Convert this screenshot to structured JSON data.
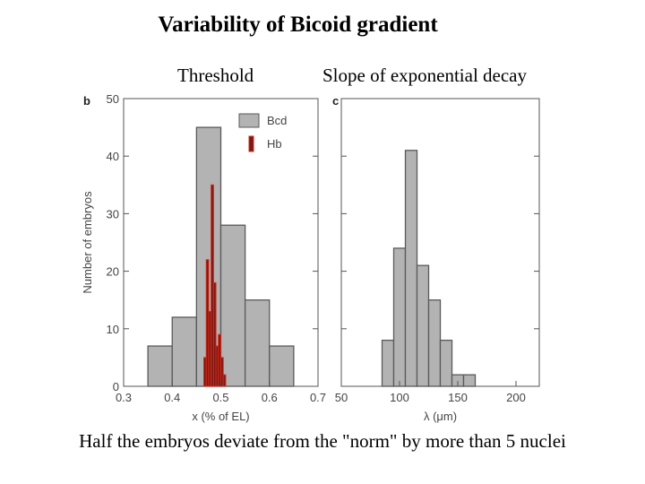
{
  "slide": {
    "title": "Variability of Bicoid gradient",
    "left_label": "Threshold",
    "right_label": "Slope of exponential decay",
    "caption": "Half the embryos deviate from the \"norm\" by more than 5 nuclei"
  },
  "colors": {
    "bcd_fill": "#b3b3b3",
    "hb_fill": "#7a1a14",
    "hb_edge": "#d02a1a",
    "axis": "#555555"
  },
  "chart_data": [
    {
      "type": "bar",
      "panel_letter": "b",
      "xlabel": "x (% of EL)",
      "ylabel": "Number of embryos",
      "xlim": [
        0.3,
        0.7
      ],
      "ylim": [
        0,
        50
      ],
      "xticks": [
        "0.3",
        "0.4",
        "0.5",
        "0.6",
        "0.7"
      ],
      "yticks": [
        "0",
        "10",
        "20",
        "30",
        "40",
        "50"
      ],
      "legend": {
        "position": "top-right",
        "entries": [
          "Bcd",
          "Hb"
        ]
      },
      "series": [
        {
          "name": "Bcd",
          "bins": [
            {
              "x0": 0.35,
              "x1": 0.4,
              "value": 7
            },
            {
              "x0": 0.4,
              "x1": 0.45,
              "value": 12
            },
            {
              "x0": 0.45,
              "x1": 0.5,
              "value": 45
            },
            {
              "x0": 0.5,
              "x1": 0.55,
              "value": 28
            },
            {
              "x0": 0.55,
              "x1": 0.6,
              "value": 15
            },
            {
              "x0": 0.6,
              "x1": 0.65,
              "value": 7
            }
          ]
        },
        {
          "name": "Hb",
          "bins": [
            {
              "x0": 0.465,
              "x1": 0.47,
              "value": 5
            },
            {
              "x0": 0.47,
              "x1": 0.475,
              "value": 22
            },
            {
              "x0": 0.475,
              "x1": 0.48,
              "value": 13
            },
            {
              "x0": 0.48,
              "x1": 0.485,
              "value": 35
            },
            {
              "x0": 0.485,
              "x1": 0.49,
              "value": 18
            },
            {
              "x0": 0.49,
              "x1": 0.495,
              "value": 7
            },
            {
              "x0": 0.495,
              "x1": 0.5,
              "value": 9
            },
            {
              "x0": 0.5,
              "x1": 0.505,
              "value": 5
            },
            {
              "x0": 0.505,
              "x1": 0.51,
              "value": 2
            }
          ]
        }
      ]
    },
    {
      "type": "bar",
      "panel_letter": "c",
      "xlabel": "λ (μm)",
      "ylabel": "",
      "xlim": [
        50,
        220
      ],
      "ylim": [
        0,
        50
      ],
      "xticks": [
        "50",
        "100",
        "150",
        "200"
      ],
      "series": [
        {
          "name": "Bcd",
          "bins": [
            {
              "x0": 85,
              "x1": 95,
              "value": 8
            },
            {
              "x0": 95,
              "x1": 105,
              "value": 24
            },
            {
              "x0": 105,
              "x1": 115,
              "value": 41
            },
            {
              "x0": 115,
              "x1": 125,
              "value": 21
            },
            {
              "x0": 125,
              "x1": 135,
              "value": 15
            },
            {
              "x0": 135,
              "x1": 145,
              "value": 8
            },
            {
              "x0": 145,
              "x1": 155,
              "value": 2
            },
            {
              "x0": 155,
              "x1": 165,
              "value": 2
            }
          ]
        }
      ]
    }
  ]
}
